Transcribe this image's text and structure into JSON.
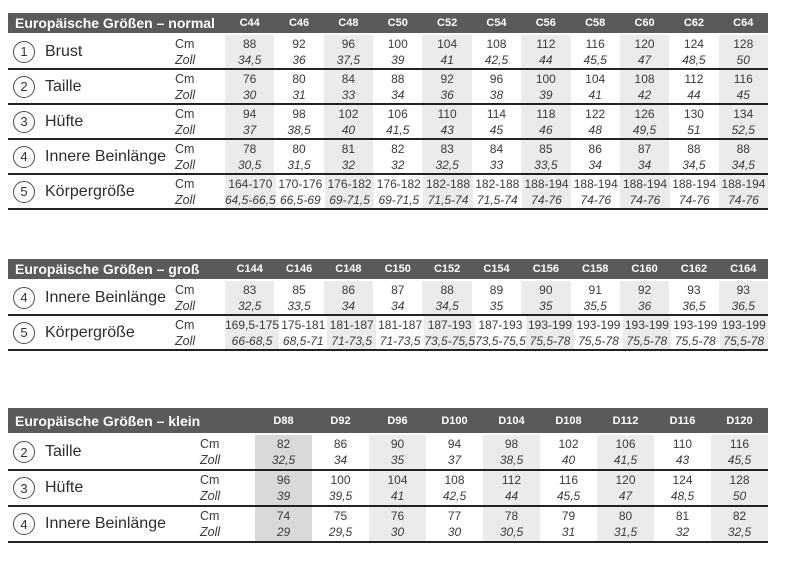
{
  "page": {
    "background": "#ffffff"
  },
  "colors": {
    "header_bar": "#595a5c",
    "header_text": "#ffffff",
    "column_shade": "#ebebeb",
    "column_shade_dark": "#d9d9d9",
    "text": "#3a3a3b",
    "rule": "#222222"
  },
  "unit_labels": {
    "cm": "Cm",
    "zoll": "Zoll"
  },
  "tables": [
    {
      "id": "normal",
      "title": "Europäische Größen – normal",
      "columns": [
        "C44",
        "C46",
        "C48",
        "C50",
        "C52",
        "C54",
        "C56",
        "C58",
        "C60",
        "C62",
        "C64"
      ],
      "shaded_columns": [
        0,
        2,
        4,
        6,
        8,
        10
      ],
      "dark_columns": [],
      "rows": [
        {
          "num": "1",
          "label": "Brust",
          "cm": [
            "88",
            "92",
            "96",
            "100",
            "104",
            "108",
            "112",
            "116",
            "120",
            "124",
            "128"
          ],
          "zoll": [
            "34,5",
            "36",
            "37,5",
            "39",
            "41",
            "42,5",
            "44",
            "45,5",
            "47",
            "48,5",
            "50"
          ]
        },
        {
          "num": "2",
          "label": "Taille",
          "cm": [
            "76",
            "80",
            "84",
            "88",
            "92",
            "96",
            "100",
            "104",
            "108",
            "112",
            "116"
          ],
          "zoll": [
            "30",
            "31",
            "33",
            "34",
            "36",
            "38",
            "39",
            "41",
            "42",
            "44",
            "45"
          ]
        },
        {
          "num": "3",
          "label": "Hüfte",
          "cm": [
            "94",
            "98",
            "102",
            "106",
            "110",
            "114",
            "118",
            "122",
            "126",
            "130",
            "134"
          ],
          "zoll": [
            "37",
            "38,5",
            "40",
            "41,5",
            "43",
            "45",
            "46",
            "48",
            "49,5",
            "51",
            "52,5"
          ]
        },
        {
          "num": "4",
          "label": "Innere Beinlänge",
          "cm": [
            "78",
            "80",
            "81",
            "82",
            "83",
            "84",
            "85",
            "86",
            "87",
            "88",
            "88"
          ],
          "zoll": [
            "30,5",
            "31,5",
            "32",
            "32",
            "32,5",
            "33",
            "33,5",
            "34",
            "34",
            "34,5",
            "34,5"
          ]
        },
        {
          "num": "5",
          "label": "Körpergröße",
          "cm": [
            "164-170",
            "170-176",
            "176-182",
            "176-182",
            "182-188",
            "182-188",
            "188-194",
            "188-194",
            "188-194",
            "188-194",
            "188-194"
          ],
          "zoll": [
            "64,5-66,5",
            "66,5-69",
            "69-71,5",
            "69-71,5",
            "71,5-74",
            "71,5-74",
            "74-76",
            "74-76",
            "74-76",
            "74-76",
            "74-76"
          ]
        }
      ]
    },
    {
      "id": "gross",
      "title": "Europäische Größen – groß",
      "columns": [
        "C144",
        "C146",
        "C148",
        "C150",
        "C152",
        "C154",
        "C156",
        "C158",
        "C160",
        "C162",
        "C164"
      ],
      "shaded_columns": [
        0,
        2,
        4,
        6,
        8,
        10
      ],
      "dark_columns": [],
      "rows": [
        {
          "num": "4",
          "label": "Innere Beinlänge",
          "cm": [
            "83",
            "85",
            "86",
            "87",
            "88",
            "89",
            "90",
            "91",
            "92",
            "93",
            "93"
          ],
          "zoll": [
            "32,5",
            "33,5",
            "34",
            "34",
            "34,5",
            "35",
            "35",
            "35,5",
            "36",
            "36,5",
            "36,5"
          ]
        },
        {
          "num": "5",
          "label": "Körpergröße",
          "cm": [
            "169,5-175",
            "175-181",
            "181-187",
            "181-187",
            "187-193",
            "187-193",
            "193-199",
            "193-199",
            "193-199",
            "193-199",
            "193-199"
          ],
          "zoll": [
            "66-68,5",
            "68,5-71",
            "71-73,5",
            "71-73,5",
            "73,5-75,5",
            "73,5-75,5",
            "75,5-78",
            "75,5-78",
            "75,5-78",
            "75,5-78",
            "75,5-78"
          ]
        }
      ]
    },
    {
      "id": "klein",
      "title": "Europäische Größen – klein",
      "columns": [
        "D88",
        "D92",
        "D96",
        "D100",
        "D104",
        "D108",
        "D112",
        "D116",
        "D120"
      ],
      "shaded_columns": [
        0,
        2,
        4,
        6,
        8
      ],
      "dark_columns": [
        0
      ],
      "rows": [
        {
          "num": "2",
          "label": "Taille",
          "cm": [
            "82",
            "86",
            "90",
            "94",
            "98",
            "102",
            "106",
            "110",
            "116"
          ],
          "zoll": [
            "32,5",
            "34",
            "35",
            "37",
            "38,5",
            "40",
            "41,5",
            "43",
            "45,5"
          ]
        },
        {
          "num": "3",
          "label": "Hüfte",
          "cm": [
            "96",
            "100",
            "104",
            "108",
            "112",
            "116",
            "120",
            "124",
            "128"
          ],
          "zoll": [
            "39",
            "39,5",
            "41",
            "42,5",
            "44",
            "45,5",
            "47",
            "48,5",
            "50"
          ]
        },
        {
          "num": "4",
          "label": "Innere Beinlänge",
          "cm": [
            "74",
            "75",
            "76",
            "77",
            "78",
            "79",
            "80",
            "81",
            "82"
          ],
          "zoll": [
            "29",
            "29,5",
            "30",
            "30",
            "30,5",
            "31",
            "31,5",
            "32",
            "32,5"
          ]
        }
      ]
    }
  ]
}
